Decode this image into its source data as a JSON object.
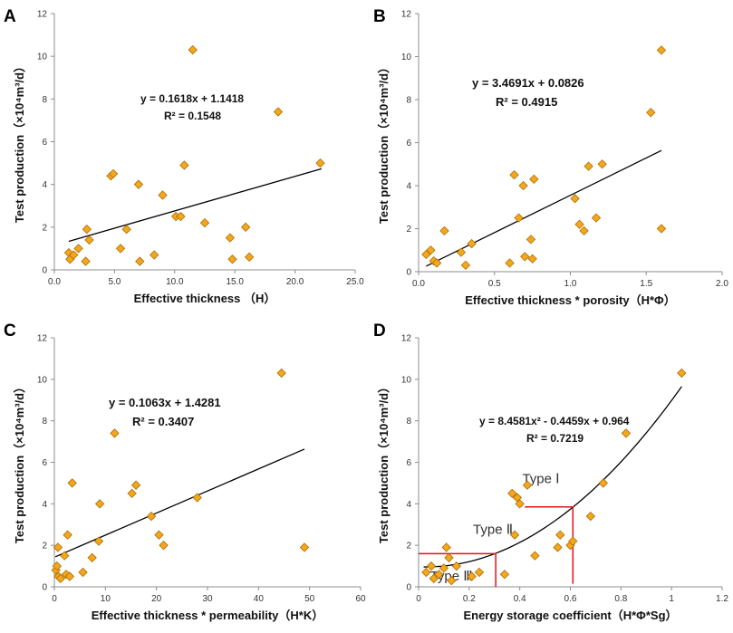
{
  "colors": {
    "marker_fill": "#f2a81d",
    "marker_stroke": "#b06a00",
    "trend": "#000000",
    "type_lines": "#e8101a",
    "axis": "#8c8c8c"
  },
  "chart_data": [
    {
      "panel": "A",
      "type": "scatter",
      "xlabel": "Effective thickness （H）",
      "ylabel": "Test production（×10⁴m³/d）",
      "xlim": [
        0,
        25
      ],
      "ylim": [
        0,
        12
      ],
      "xticks": [
        "0.0",
        "5.0",
        "10.0",
        "15.0",
        "20.0",
        "25.0"
      ],
      "xtick_values": [
        0,
        5,
        10,
        15,
        20,
        25
      ],
      "yticks": [
        "0",
        "2",
        "4",
        "6",
        "8",
        "10",
        "12"
      ],
      "ytick_values": [
        0,
        2,
        4,
        6,
        8,
        10,
        12
      ],
      "equation": "y = 0.1618x + 1.1418",
      "r2": "R² = 0.1548",
      "trend": {
        "kind": "linear",
        "coef": [
          0.1618,
          1.1418
        ],
        "x_range": [
          1.2,
          22.2
        ]
      },
      "points": [
        [
          1.2,
          0.8
        ],
        [
          1.3,
          0.5
        ],
        [
          1.6,
          0.7
        ],
        [
          2.0,
          1.0
        ],
        [
          2.6,
          0.4
        ],
        [
          2.7,
          1.9
        ],
        [
          2.9,
          1.4
        ],
        [
          4.7,
          4.4
        ],
        [
          4.9,
          4.5
        ],
        [
          5.5,
          1.0
        ],
        [
          6.0,
          1.9
        ],
        [
          7.0,
          4.0
        ],
        [
          7.1,
          0.4
        ],
        [
          8.3,
          0.7
        ],
        [
          9.0,
          3.5
        ],
        [
          10.1,
          2.5
        ],
        [
          10.5,
          2.5
        ],
        [
          10.8,
          4.9
        ],
        [
          11.5,
          10.3
        ],
        [
          12.5,
          2.2
        ],
        [
          14.6,
          1.5
        ],
        [
          14.8,
          0.5
        ],
        [
          15.9,
          2.0
        ],
        [
          16.2,
          0.6
        ],
        [
          18.6,
          7.4
        ],
        [
          22.1,
          5.0
        ]
      ]
    },
    {
      "panel": "B",
      "type": "scatter",
      "xlabel": "Effective thickness * porosity（H*Φ）",
      "ylabel": "Test production（×10⁴m³/d）",
      "xlim": [
        0,
        2
      ],
      "ylim": [
        0,
        12
      ],
      "xticks": [
        "0.0",
        "0.5",
        "1.0",
        "1.5",
        "2.0"
      ],
      "xtick_values": [
        0,
        0.5,
        1.0,
        1.5,
        2.0
      ],
      "yticks": [
        "0",
        "2",
        "4",
        "6",
        "8",
        "10",
        "12"
      ],
      "ytick_values": [
        0,
        2,
        4,
        6,
        8,
        10,
        12
      ],
      "equation": "y = 3.4691x + 0.0826",
      "r2": "R² = 0.4915",
      "trend": {
        "kind": "linear",
        "coef": [
          3.4691,
          0.0826
        ],
        "x_range": [
          0.05,
          1.6
        ]
      },
      "points": [
        [
          0.05,
          0.8
        ],
        [
          0.08,
          1.0
        ],
        [
          0.1,
          0.5
        ],
        [
          0.12,
          0.4
        ],
        [
          0.17,
          1.9
        ],
        [
          0.28,
          0.9
        ],
        [
          0.31,
          0.3
        ],
        [
          0.35,
          1.3
        ],
        [
          0.6,
          0.4
        ],
        [
          0.63,
          4.5
        ],
        [
          0.66,
          2.5
        ],
        [
          0.69,
          4.0
        ],
        [
          0.7,
          0.7
        ],
        [
          0.74,
          1.5
        ],
        [
          0.75,
          0.6
        ],
        [
          0.76,
          4.3
        ],
        [
          1.03,
          3.4
        ],
        [
          1.06,
          2.2
        ],
        [
          1.09,
          1.9
        ],
        [
          1.12,
          4.9
        ],
        [
          1.17,
          2.5
        ],
        [
          1.21,
          5.0
        ],
        [
          1.53,
          7.4
        ],
        [
          1.6,
          10.3
        ],
        [
          1.6,
          2.0
        ]
      ]
    },
    {
      "panel": "C",
      "type": "scatter",
      "xlabel": "Effective thickness * permeability（H*K）",
      "ylabel": "Test production（×10⁴m³/d）",
      "xlim": [
        0,
        60
      ],
      "ylim": [
        0,
        12
      ],
      "xticks": [
        "0",
        "10",
        "20",
        "30",
        "40",
        "50",
        "60"
      ],
      "xtick_values": [
        0,
        10,
        20,
        30,
        40,
        50,
        60
      ],
      "yticks": [
        "0",
        "2",
        "4",
        "6",
        "8",
        "10",
        "12"
      ],
      "ytick_values": [
        0,
        2,
        4,
        6,
        8,
        10,
        12
      ],
      "equation": "y = 0.1063x + 1.4281",
      "r2": "R² = 0.3407",
      "trend": {
        "kind": "linear",
        "coef": [
          0.1063,
          1.4281
        ],
        "x_range": [
          0.2,
          49
        ]
      },
      "points": [
        [
          0.3,
          0.8
        ],
        [
          0.5,
          1.0
        ],
        [
          0.7,
          1.9
        ],
        [
          0.8,
          0.5
        ],
        [
          1.2,
          0.4
        ],
        [
          2.0,
          1.5
        ],
        [
          2.3,
          0.6
        ],
        [
          2.6,
          2.5
        ],
        [
          3.0,
          0.5
        ],
        [
          3.5,
          5.0
        ],
        [
          5.6,
          0.7
        ],
        [
          7.4,
          1.4
        ],
        [
          8.7,
          2.2
        ],
        [
          8.9,
          4.0
        ],
        [
          11.8,
          7.4
        ],
        [
          15.2,
          4.5
        ],
        [
          16.0,
          4.9
        ],
        [
          19.0,
          3.4
        ],
        [
          20.5,
          2.5
        ],
        [
          21.4,
          2.0
        ],
        [
          28.0,
          4.3
        ],
        [
          44.5,
          10.3
        ],
        [
          49.0,
          1.9
        ]
      ]
    },
    {
      "panel": "D",
      "type": "scatter",
      "xlabel": "Energy storage coefficient（H*Φ*Sg）",
      "ylabel": "Test production（×10⁴m³/d）",
      "xlim": [
        0,
        1.2
      ],
      "ylim": [
        0,
        12
      ],
      "xticks": [
        "0",
        "0.2",
        "0.4",
        "0.6",
        "0.8",
        "1",
        "1.2"
      ],
      "xtick_values": [
        0,
        0.2,
        0.4,
        0.6,
        0.8,
        1.0,
        1.2
      ],
      "yticks": [
        "0",
        "2",
        "4",
        "6",
        "8",
        "10",
        "12"
      ],
      "ytick_values": [
        0,
        2,
        4,
        6,
        8,
        10,
        12
      ],
      "equation": "y = 8.4581x² - 0.4459x + 0.964",
      "r2": "R² = 0.7219",
      "trend": {
        "kind": "quadratic",
        "coef": [
          8.4581,
          -0.4459,
          0.964
        ],
        "x_range": [
          0.02,
          1.04
        ]
      },
      "type_labels": [
        "Type Ⅰ",
        "Type Ⅱ",
        "Type Ⅲ"
      ],
      "type_boundaries": {
        "type3": {
          "x": 0.305,
          "y": 1.6
        },
        "type2": {
          "x": 0.61,
          "y": 3.85
        }
      },
      "points": [
        [
          0.03,
          0.7
        ],
        [
          0.05,
          1.0
        ],
        [
          0.06,
          0.4
        ],
        [
          0.08,
          0.6
        ],
        [
          0.1,
          0.9
        ],
        [
          0.11,
          1.9
        ],
        [
          0.12,
          1.4
        ],
        [
          0.13,
          0.3
        ],
        [
          0.15,
          1.0
        ],
        [
          0.21,
          0.5
        ],
        [
          0.24,
          0.7
        ],
        [
          0.34,
          0.6
        ],
        [
          0.37,
          4.5
        ],
        [
          0.38,
          2.5
        ],
        [
          0.39,
          4.3
        ],
        [
          0.4,
          4.0
        ],
        [
          0.43,
          4.9
        ],
        [
          0.46,
          1.5
        ],
        [
          0.55,
          1.9
        ],
        [
          0.56,
          2.5
        ],
        [
          0.6,
          2.0
        ],
        [
          0.61,
          2.2
        ],
        [
          0.68,
          3.4
        ],
        [
          0.73,
          5.0
        ],
        [
          0.82,
          7.4
        ],
        [
          1.04,
          10.3
        ]
      ]
    }
  ]
}
